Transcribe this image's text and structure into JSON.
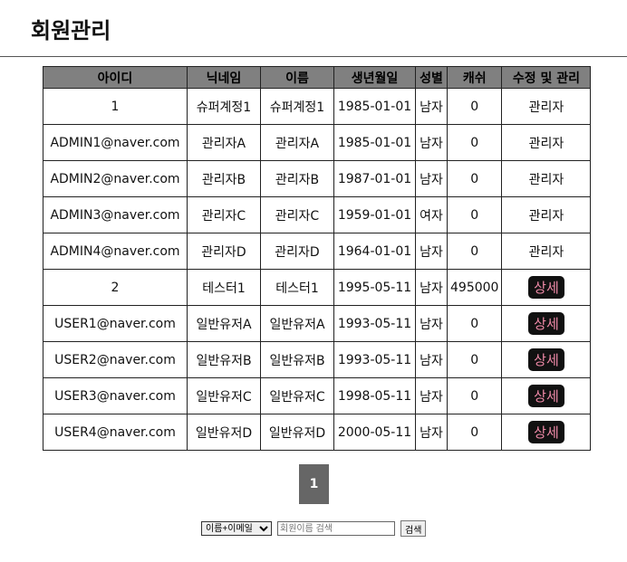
{
  "page": {
    "title": "회원관리"
  },
  "table": {
    "headers": [
      "아이디",
      "닉네임",
      "이름",
      "생년월일",
      "성별",
      "캐쉬",
      "수정 및 관리"
    ],
    "rows": [
      {
        "id": "1",
        "nick": "슈퍼계정1",
        "name": "슈퍼계정1",
        "birth": "1985-01-01",
        "gender": "남자",
        "cash": "0",
        "manage": "관리자",
        "detail": false
      },
      {
        "id": "ADMIN1@naver.com",
        "nick": "관리자A",
        "name": "관리자A",
        "birth": "1985-01-01",
        "gender": "남자",
        "cash": "0",
        "manage": "관리자",
        "detail": false
      },
      {
        "id": "ADMIN2@naver.com",
        "nick": "관리자B",
        "name": "관리자B",
        "birth": "1987-01-01",
        "gender": "남자",
        "cash": "0",
        "manage": "관리자",
        "detail": false
      },
      {
        "id": "ADMIN3@naver.com",
        "nick": "관리자C",
        "name": "관리자C",
        "birth": "1959-01-01",
        "gender": "여자",
        "cash": "0",
        "manage": "관리자",
        "detail": false
      },
      {
        "id": "ADMIN4@naver.com",
        "nick": "관리자D",
        "name": "관리자D",
        "birth": "1964-01-01",
        "gender": "남자",
        "cash": "0",
        "manage": "관리자",
        "detail": false
      },
      {
        "id": "2",
        "nick": "테스터1",
        "name": "테스터1",
        "birth": "1995-05-11",
        "gender": "남자",
        "cash": "495000",
        "manage": "상세",
        "detail": true
      },
      {
        "id": "USER1@naver.com",
        "nick": "일반유저A",
        "name": "일반유저A",
        "birth": "1993-05-11",
        "gender": "남자",
        "cash": "0",
        "manage": "상세",
        "detail": true
      },
      {
        "id": "USER2@naver.com",
        "nick": "일반유저B",
        "name": "일반유저B",
        "birth": "1993-05-11",
        "gender": "남자",
        "cash": "0",
        "manage": "상세",
        "detail": true
      },
      {
        "id": "USER3@naver.com",
        "nick": "일반유저C",
        "name": "일반유저C",
        "birth": "1998-05-11",
        "gender": "남자",
        "cash": "0",
        "manage": "상세",
        "detail": true
      },
      {
        "id": "USER4@naver.com",
        "nick": "일반유저D",
        "name": "일반유저D",
        "birth": "2000-05-11",
        "gender": "남자",
        "cash": "0",
        "manage": "상세",
        "detail": true
      }
    ]
  },
  "pagination": {
    "current": "1"
  },
  "search": {
    "select_value": "이름+이메일",
    "placeholder": "회원이름 검색",
    "button": "검색"
  },
  "colors": {
    "header_bg": "#808080",
    "detail_btn_bg": "#111111",
    "detail_btn_text": "#f08aa8",
    "pager_bg": "#666666"
  }
}
